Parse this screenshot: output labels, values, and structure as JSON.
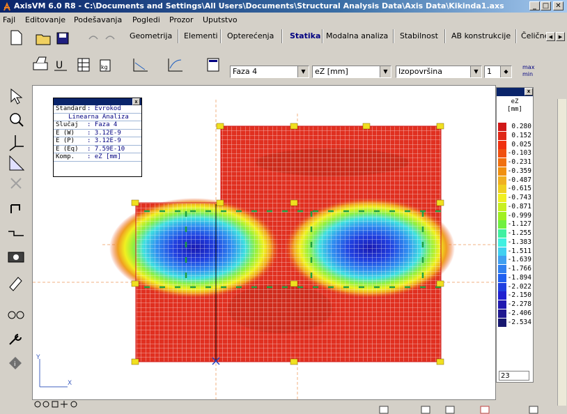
{
  "window": {
    "title": "AxisVM 6.0 R8 - C:\\Documents and Settings\\All Users\\Documents\\Structural Analysis Data\\Axis Data\\Kikinda1.axs",
    "minimize": "_",
    "maximize": "□",
    "close": "✕"
  },
  "menu": [
    "Fajl",
    "Editovanje",
    "Podešavanja",
    "Pogledi",
    "Prozor",
    "Uputstvo"
  ],
  "tabs": [
    "Geometrija",
    "Elementi",
    "Opterećenja",
    "Statika",
    "Modalna analiza",
    "Stabilnost",
    "AB konstrukcije",
    "Čelične"
  ],
  "active_tab": "Statika",
  "tab_scroll": {
    "left": "◀",
    "right": "▶"
  },
  "toolbar2": {
    "load_case": "Faza 4",
    "component": "eZ [mm]",
    "display_mode": "Izopovršina",
    "spin_value": "1",
    "minmax_top": "max",
    "minmax_bottom": "min"
  },
  "info": {
    "rows": [
      {
        "k": "Standard",
        "v": ": Evrokod"
      },
      {
        "k": "",
        "v": "Linearna Analiza"
      },
      {
        "k": "Slučaj",
        "v": ": Faza 4"
      },
      {
        "k": "E (W)",
        "v": ": 3.12E-9"
      },
      {
        "k": "E (P)",
        "v": ": 3.12E-9"
      },
      {
        "k": "E (Eq)",
        "v": ": 7.59E-10"
      },
      {
        "k": "Komp.",
        "v": ": eZ [mm]"
      }
    ]
  },
  "legend": {
    "title": "eZ",
    "unit": "[mm]",
    "levels": [
      "0.280",
      "0.152",
      "0.025",
      "-0.103",
      "-0.231",
      "-0.359",
      "-0.487",
      "-0.615",
      "-0.743",
      "-0.871",
      "-0.999",
      "-1.127",
      "-1.255",
      "-1.383",
      "-1.511",
      "-1.639",
      "-1.766",
      "-1.894",
      "-2.022",
      "-2.150",
      "-2.278",
      "-2.406",
      "-2.534"
    ],
    "colors": [
      "#d01818",
      "#e02818",
      "#f03010",
      "#f05010",
      "#f07010",
      "#f09010",
      "#f0b020",
      "#f0d020",
      "#f0f020",
      "#c8f020",
      "#a0f020",
      "#70f040",
      "#40f0a0",
      "#40f0e0",
      "#40d0f0",
      "#40a0f0",
      "#3080f0",
      "#2060f0",
      "#2040e0",
      "#2020d0",
      "#2018b0",
      "#201890",
      "#181870"
    ],
    "count": "23"
  },
  "axes": {
    "y": "Y",
    "x": "X"
  },
  "colors": {
    "accent": "#0a246a",
    "panel": "#d4d0c8"
  }
}
